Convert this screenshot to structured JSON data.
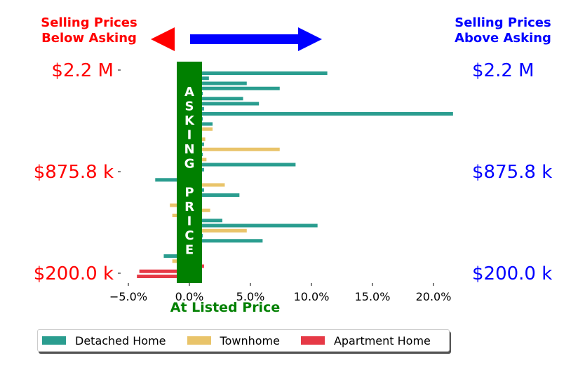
{
  "chart_data": {
    "type": "bar",
    "orientation": "horizontal",
    "xlim": [
      -0.065,
      0.22
    ],
    "xticks": [
      "−5.0%",
      "0.0%",
      "5.0%",
      "10.0%",
      "15.0%",
      "20.0%"
    ],
    "xtick_values": [
      -0.05,
      0.0,
      0.05,
      0.1,
      0.15,
      0.2
    ],
    "left_labels": [
      "$2.2 M",
      "$875.8 k",
      "$200.0 k"
    ],
    "right_labels": [
      "$2.2 M",
      "$875.8 k",
      "$200.0 k"
    ],
    "headline_left": "Selling Prices\nBelow Asking",
    "headline_right": "Selling Prices\nAbove Asking",
    "center_band": "ASKING PRICE",
    "xlabel": "At Listed Price",
    "colors": {
      "Detached Home": "#2a9d8f",
      "Townhome": "#e9c46a",
      "Apartment Home": "#e63946",
      "below": "#ff0000",
      "above": "#0000ff",
      "band": "#008000"
    },
    "series": [
      {
        "name": "Detached Home"
      },
      {
        "name": "Townhome"
      },
      {
        "name": "Apartment Home"
      }
    ],
    "bars": [
      {
        "series": "Detached Home",
        "value": 0.113
      },
      {
        "series": "Detached Home",
        "value": 0.016
      },
      {
        "series": "Detached Home",
        "value": 0.047
      },
      {
        "series": "Detached Home",
        "value": 0.074
      },
      {
        "series": "Detached Home",
        "value": 0.011
      },
      {
        "series": "Detached Home",
        "value": 0.044
      },
      {
        "series": "Detached Home",
        "value": 0.057
      },
      {
        "series": "Detached Home",
        "value": 0.012
      },
      {
        "series": "Detached Home",
        "value": 0.216
      },
      {
        "series": "Detached Home",
        "value": 0.011
      },
      {
        "series": "Detached Home",
        "value": 0.019
      },
      {
        "series": "Townhome",
        "value": 0.019
      },
      {
        "series": "Townhome",
        "value": 0.01
      },
      {
        "series": "Townhome",
        "value": 0.013
      },
      {
        "series": "Detached Home",
        "value": 0.012
      },
      {
        "series": "Townhome",
        "value": 0.074
      },
      {
        "series": "Detached Home",
        "value": 0.011
      },
      {
        "series": "Townhome",
        "value": 0.014
      },
      {
        "series": "Detached Home",
        "value": 0.087
      },
      {
        "series": "Detached Home",
        "value": 0.012
      },
      {
        "series": "Townhome",
        "value": 0.01
      },
      {
        "series": "Detached Home",
        "value": -0.028
      },
      {
        "series": "Townhome",
        "value": 0.029
      },
      {
        "series": "Detached Home",
        "value": 0.012
      },
      {
        "series": "Detached Home",
        "value": 0.041
      },
      {
        "series": "Townhome",
        "value": 0.01
      },
      {
        "series": "Townhome",
        "value": -0.016
      },
      {
        "series": "Townhome",
        "value": 0.017
      },
      {
        "series": "Townhome",
        "value": -0.014
      },
      {
        "series": "Detached Home",
        "value": 0.027
      },
      {
        "series": "Detached Home",
        "value": 0.105
      },
      {
        "series": "Townhome",
        "value": 0.047
      },
      {
        "series": "Detached Home",
        "value": 0.011
      },
      {
        "series": "Detached Home",
        "value": 0.06
      },
      {
        "series": "Townhome",
        "value": 0.01
      },
      {
        "series": "Detached Home",
        "value": 0.01
      },
      {
        "series": "Detached Home",
        "value": -0.021
      },
      {
        "series": "Townhome",
        "value": -0.014
      },
      {
        "series": "Apartment Home",
        "value": 0.012
      },
      {
        "series": "Apartment Home",
        "value": -0.041
      },
      {
        "series": "Apartment Home",
        "value": -0.043
      }
    ]
  }
}
